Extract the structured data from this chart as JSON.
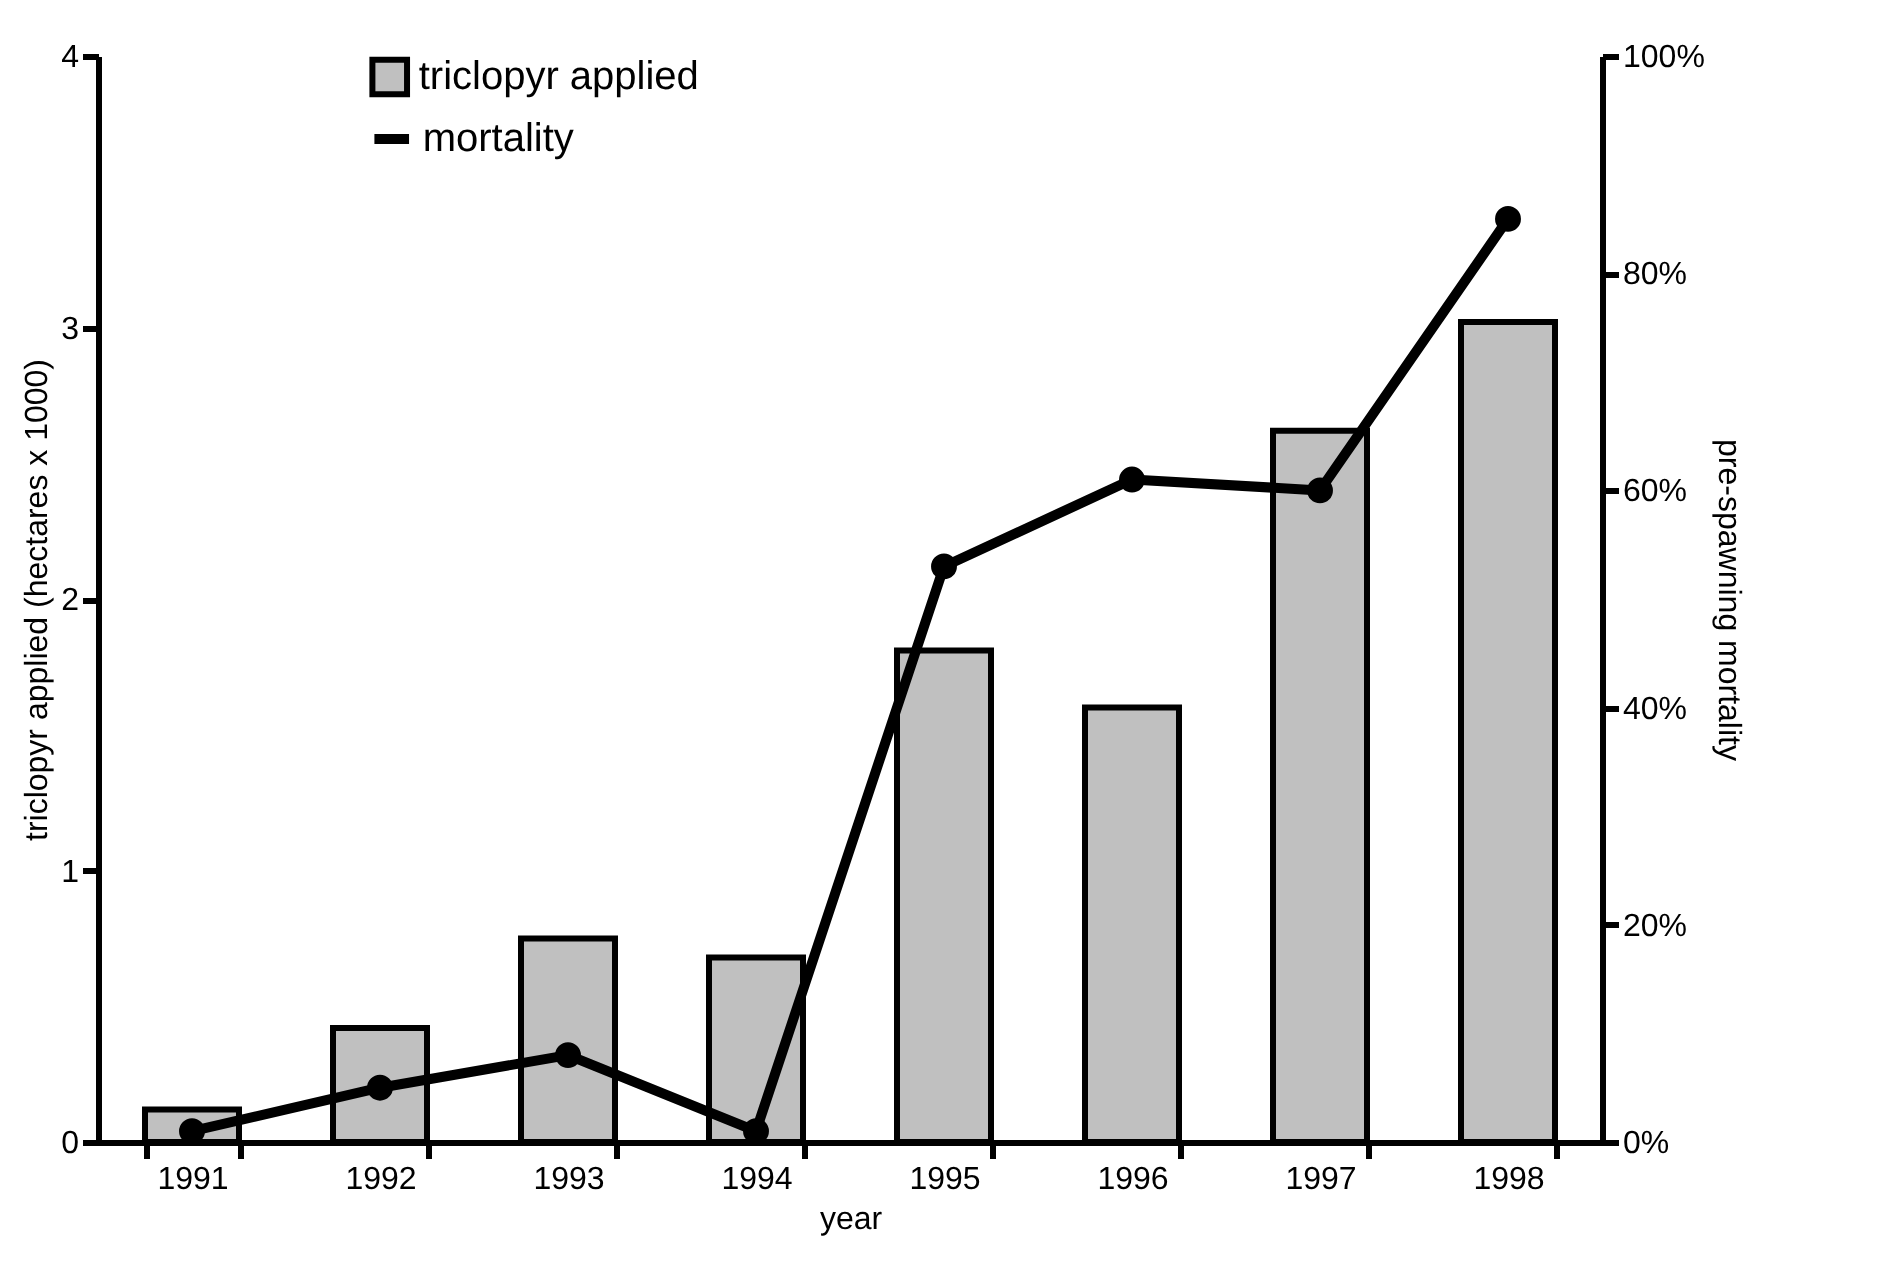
{
  "chart_data": {
    "type": "bar",
    "xlabel": "year",
    "ylabel": "triclopyr applied (hectares x 1000)",
    "y2label": "pre-spawning mortality",
    "categories": [
      "1991",
      "1992",
      "1993",
      "1994",
      "1995",
      "1996",
      "1997",
      "1998"
    ],
    "series": [
      {
        "name": "triclopyr applied",
        "color": "#c0c0c0",
        "values": [
          0.12,
          0.42,
          0.75,
          0.68,
          1.81,
          1.6,
          2.62,
          3.02
        ]
      },
      {
        "name": "mortality",
        "type": "line",
        "axis": "y2",
        "color": "#000000",
        "values": [
          1,
          5,
          8,
          1,
          53,
          61,
          60,
          85
        ]
      }
    ],
    "ylim": [
      0,
      4
    ],
    "yticks": [
      0,
      1,
      2,
      3,
      4
    ],
    "y2lim": [
      0,
      100
    ],
    "y2ticks": [
      {
        "value": 0,
        "label": "0%"
      },
      {
        "value": 20,
        "label": "20%"
      },
      {
        "value": 40,
        "label": "40%"
      },
      {
        "value": 60,
        "label": "60%"
      },
      {
        "value": 80,
        "label": "80%"
      },
      {
        "value": 100,
        "label": "100%"
      }
    ],
    "legend": "top",
    "marker": "circle",
    "grid": false
  }
}
